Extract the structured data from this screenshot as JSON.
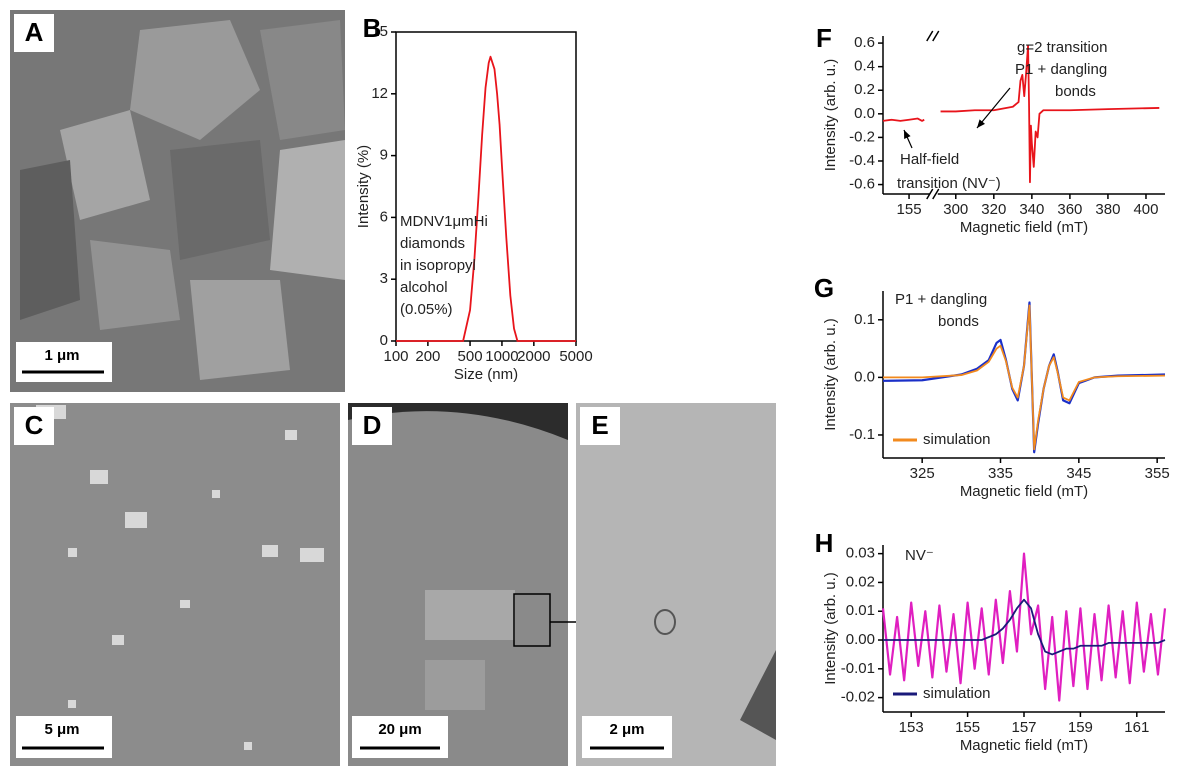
{
  "image_panels": [
    {
      "label": "A",
      "scale_bar": "1 μm"
    },
    {
      "label": "C",
      "scale_bar": "5 μm"
    },
    {
      "label": "D",
      "scale_bar": "20 μm"
    },
    {
      "label": "E",
      "scale_bar": "2 μm"
    }
  ],
  "chart_data": [
    {
      "type": "line",
      "panel_label": "B",
      "xlabel": "Size (nm)",
      "ylabel": "Intensity (%)",
      "xscale": "log",
      "xlim": [
        100,
        5000
      ],
      "xticks": [
        100,
        200,
        500,
        1000,
        2000,
        5000
      ],
      "ylim": [
        0,
        15
      ],
      "yticks": [
        0,
        3,
        6,
        9,
        12,
        15
      ],
      "frame": true,
      "annotations": [
        [
          "MDNV1μmHi",
          "diamonds",
          "in isopropyl",
          "alcohol",
          "(0.05%)"
        ]
      ],
      "x": [
        100,
        430,
        500,
        550,
        600,
        650,
        700,
        750,
        780,
        850,
        900,
        950,
        1000,
        1100,
        1200,
        1300,
        1400,
        5000
      ],
      "series": [
        {
          "color": "#e8141b",
          "values": [
            0,
            0,
            1.5,
            4,
            7,
            10,
            12.3,
            13.5,
            13.8,
            13.2,
            12,
            10.5,
            8.5,
            5,
            2.2,
            0.6,
            0,
            0
          ]
        }
      ]
    },
    {
      "type": "line",
      "panel_label": "F",
      "xlabel": "Magnetic field (mT)",
      "ylabel": "Intensity (arb. u.)",
      "xlim": [
        149,
        410
      ],
      "xbreak": [
        160,
        290
      ],
      "xticks": [
        155,
        300,
        320,
        340,
        360,
        380,
        400
      ],
      "ylim": [
        -0.68,
        0.66
      ],
      "yticks": [
        -0.6,
        -0.4,
        -0.2,
        {
          "value": 0,
          "label": "0.0"
        },
        0.2,
        0.4,
        0.6
      ],
      "annotations": [
        [
          "g=2 transition",
          "P1 + dangling",
          "bonds"
        ],
        [
          "Half-field",
          "transition (NV⁻)"
        ]
      ],
      "x": [
        149,
        151,
        153,
        155,
        157,
        158,
        158.5,
        null,
        292,
        300,
        310,
        320,
        330,
        333,
        334,
        335,
        336,
        337,
        338,
        338.5,
        339,
        339.5,
        340,
        341,
        342,
        343,
        344,
        346,
        350,
        360,
        380,
        407
      ],
      "series": [
        {
          "color": "#e8141b",
          "values": [
            -0.06,
            -0.05,
            -0.06,
            -0.05,
            -0.04,
            -0.06,
            -0.05,
            null,
            0.02,
            0.02,
            0.03,
            0.03,
            0.06,
            0.1,
            0.28,
            0.33,
            0.15,
            0.35,
            0.58,
            0.1,
            -0.58,
            -0.1,
            -0.25,
            -0.45,
            -0.15,
            -0.2,
            0,
            0.03,
            0.03,
            0.03,
            0.04,
            0.05
          ]
        }
      ]
    },
    {
      "type": "line",
      "panel_label": "G",
      "xlabel": "Magnetic field (mT)",
      "ylabel": "Intensity (arb. u.)",
      "xlim": [
        320,
        356
      ],
      "xticks": [
        325,
        335,
        345,
        355
      ],
      "ylim": [
        -0.14,
        0.15
      ],
      "yticks": [
        -0.1,
        {
          "value": 0,
          "label": "0.0"
        },
        0.1
      ],
      "annotations": [
        [
          "P1 + dangling",
          "bonds"
        ]
      ],
      "x": [
        320,
        325,
        330,
        332,
        333.5,
        334.5,
        335,
        335.7,
        336.5,
        337.2,
        338,
        338.7,
        339,
        339.3,
        339.8,
        340.5,
        341.2,
        341.8,
        342.3,
        343,
        343.8,
        345,
        347,
        350,
        356
      ],
      "series": [
        {
          "color": "#1a2fc8",
          "values": [
            -0.006,
            -0.005,
            0.005,
            0.015,
            0.03,
            0.06,
            0.065,
            0.03,
            -0.02,
            -0.04,
            0.02,
            0.13,
            0,
            -0.13,
            -0.08,
            -0.02,
            0.02,
            0.04,
            0.01,
            -0.04,
            -0.045,
            -0.01,
            0,
            0.003,
            0.005
          ]
        },
        {
          "name": "simulation",
          "color": "#f28a1e",
          "values": [
            0,
            0,
            0.004,
            0.012,
            0.027,
            0.05,
            0.055,
            0.028,
            -0.018,
            -0.035,
            0.02,
            0.125,
            0,
            -0.125,
            -0.075,
            -0.02,
            0.02,
            0.035,
            0.008,
            -0.035,
            -0.04,
            -0.008,
            0,
            0.002,
            0.003
          ]
        }
      ]
    },
    {
      "type": "line",
      "panel_label": "H",
      "xlabel": "Magnetic field (mT)",
      "ylabel": "Intensity (arb. u.)",
      "xlim": [
        152,
        162
      ],
      "xticks": [
        153,
        155,
        157,
        159,
        161
      ],
      "ylim": [
        -0.025,
        0.033
      ],
      "yticks": [
        -0.02,
        -0.01,
        {
          "value": 0,
          "label": "0.00"
        },
        0.01,
        0.02,
        0.03
      ],
      "annotations": [
        [
          "NV⁻"
        ]
      ],
      "x": [
        152,
        152.25,
        152.5,
        152.75,
        153,
        153.25,
        153.5,
        153.75,
        154,
        154.25,
        154.5,
        154.75,
        155,
        155.25,
        155.5,
        155.75,
        156,
        156.25,
        156.5,
        156.75,
        157,
        157.25,
        157.5,
        157.75,
        158,
        158.25,
        158.5,
        158.75,
        159,
        159.25,
        159.5,
        159.75,
        160,
        160.25,
        160.5,
        160.75,
        161,
        161.25,
        161.5,
        161.75,
        162
      ],
      "series": [
        {
          "color": "#e01fc0",
          "values": [
            0.011,
            -0.012,
            0.008,
            -0.014,
            0.013,
            -0.009,
            0.01,
            -0.013,
            0.012,
            -0.011,
            0.009,
            -0.015,
            0.013,
            -0.01,
            0.011,
            -0.012,
            0.014,
            -0.008,
            0.017,
            -0.004,
            0.03,
            0.002,
            0.012,
            -0.017,
            0.008,
            -0.021,
            0.01,
            -0.016,
            0.011,
            -0.017,
            0.009,
            -0.014,
            0.012,
            -0.013,
            0.01,
            -0.015,
            0.013,
            -0.011,
            0.009,
            -0.012,
            0.011
          ]
        },
        {
          "name": "simulation",
          "color": "#1a1a7a",
          "values": [
            0,
            0,
            0,
            0,
            0,
            0,
            0,
            0,
            0,
            0,
            0,
            0,
            0,
            0,
            0,
            0.001,
            0.002,
            0.004,
            0.007,
            0.011,
            0.014,
            0.011,
            0.002,
            -0.004,
            -0.005,
            -0.004,
            -0.003,
            -0.003,
            -0.002,
            -0.002,
            -0.002,
            -0.002,
            -0.001,
            -0.001,
            -0.001,
            -0.001,
            -0.001,
            -0.001,
            -0.001,
            -0.001,
            0
          ]
        }
      ]
    }
  ]
}
